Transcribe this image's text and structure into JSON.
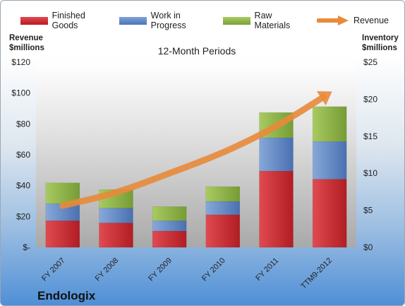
{
  "company": "Endologix",
  "chart_data": {
    "type": "bar",
    "stacked": true,
    "title": "12-Month Periods",
    "categories": [
      "FY 2007",
      "FY 2008",
      "FY 2009",
      "FY 2010",
      "FY 2011",
      "TTM9-2012"
    ],
    "ylabel_left": "Revenue $millions",
    "ylabel_right": "Inventory $millions",
    "ylim_left": [
      0,
      120
    ],
    "ylim_right": [
      0,
      25
    ],
    "left_ticks": [
      "$-",
      "$20",
      "$40",
      "$60",
      "$80",
      "$100",
      "$120"
    ],
    "right_ticks": [
      "$0",
      "$5",
      "$10",
      "$15",
      "$20",
      "$25"
    ],
    "grid": false,
    "legend_position": "top",
    "series": [
      {
        "name": "Finished Goods",
        "axis": "right",
        "color": "#c0272d",
        "values": [
          3.6,
          3.3,
          2.2,
          4.4,
          10.3,
          9.2
        ]
      },
      {
        "name": "Work in Progress",
        "axis": "right",
        "color": "#5b84c4",
        "values": [
          2.3,
          2.0,
          1.4,
          1.8,
          4.5,
          5.1
        ]
      },
      {
        "name": "Raw Materials",
        "axis": "right",
        "color": "#8fb544",
        "values": [
          2.8,
          2.5,
          1.9,
          2.0,
          3.4,
          4.7
        ]
      },
      {
        "name": "Revenue",
        "axis": "left",
        "type": "line",
        "color": "#e88a3a",
        "values": [
          27,
          35,
          48,
          61,
          78,
          100
        ]
      }
    ]
  }
}
